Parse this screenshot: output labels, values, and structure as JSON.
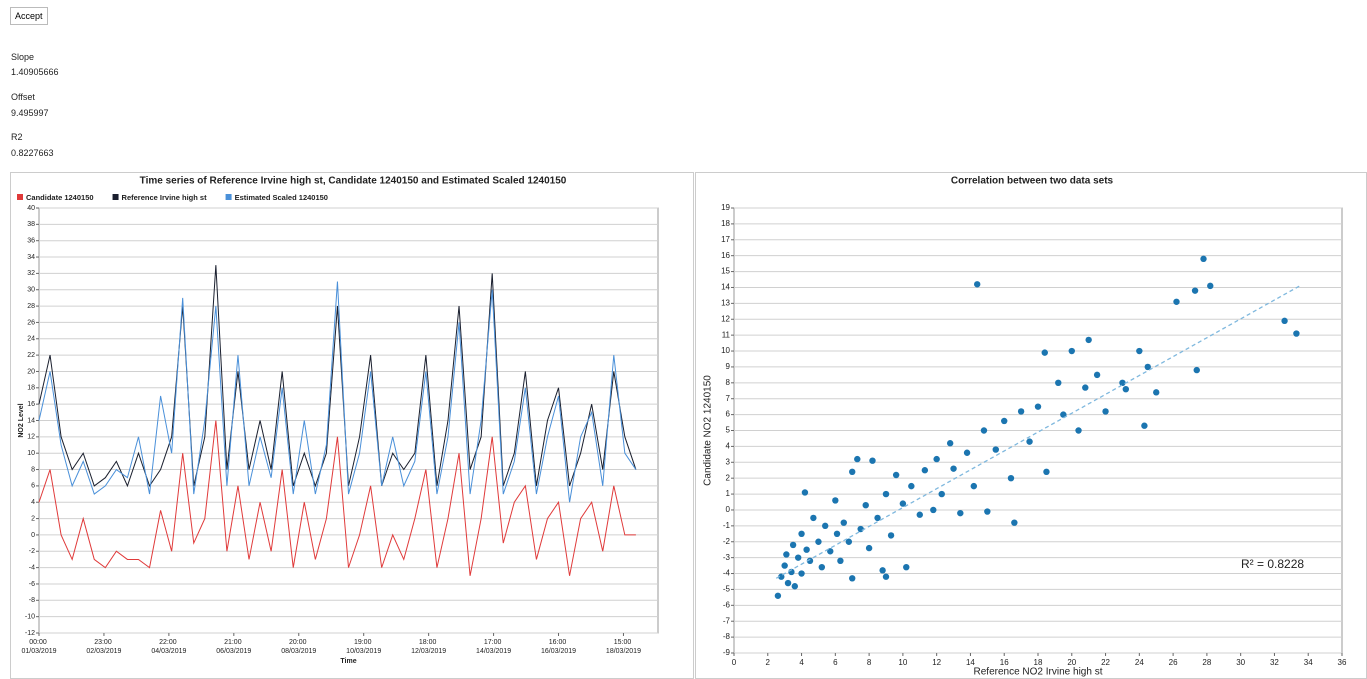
{
  "controls": {
    "button": "Accept",
    "fields": [
      {
        "label": "Slope",
        "value": "1.40905666"
      },
      {
        "label": "Offset",
        "value": "9.495997"
      },
      {
        "label": "R2",
        "value": "0.8227663"
      }
    ]
  },
  "chart_data": [
    {
      "type": "line",
      "title": "Time series of Reference Irvine high st, Candidate 1240150 and Estimated Scaled 1240150",
      "x_label": "Time",
      "y_label": "NO2 Level",
      "legend": "top-left",
      "grid": true,
      "x": [
        "2019-03-01T00:00",
        "2019-03-01T08:00",
        "2019-03-01T16:00",
        "2019-03-02T00:00",
        "2019-03-02T08:00",
        "2019-03-02T16:00",
        "2019-03-03T00:00",
        "2019-03-03T08:00",
        "2019-03-03T16:00",
        "2019-03-04T00:00",
        "2019-03-04T08:00",
        "2019-03-04T16:00",
        "2019-03-05T00:00",
        "2019-03-05T08:00",
        "2019-03-05T16:00",
        "2019-03-06T00:00",
        "2019-03-06T08:00",
        "2019-03-06T16:00",
        "2019-03-07T00:00",
        "2019-03-07T08:00",
        "2019-03-07T16:00",
        "2019-03-08T00:00",
        "2019-03-08T08:00",
        "2019-03-08T16:00",
        "2019-03-09T00:00",
        "2019-03-09T08:00",
        "2019-03-09T16:00",
        "2019-03-10T00:00",
        "2019-03-10T08:00",
        "2019-03-10T16:00",
        "2019-03-11T00:00",
        "2019-03-11T08:00",
        "2019-03-11T16:00",
        "2019-03-12T00:00",
        "2019-03-12T08:00",
        "2019-03-12T16:00",
        "2019-03-13T00:00",
        "2019-03-13T08:00",
        "2019-03-13T16:00",
        "2019-03-14T00:00",
        "2019-03-14T08:00",
        "2019-03-14T16:00",
        "2019-03-15T00:00",
        "2019-03-15T08:00",
        "2019-03-15T16:00",
        "2019-03-16T00:00",
        "2019-03-16T08:00",
        "2019-03-16T16:00",
        "2019-03-17T00:00",
        "2019-03-17T08:00",
        "2019-03-17T16:00",
        "2019-03-18T00:00",
        "2019-03-18T08:00",
        "2019-03-18T16:00",
        "2019-03-19T00:00"
      ],
      "series": [
        {
          "name": "Candidate 1240150",
          "color": "#e03a3a",
          "values": [
            4,
            8,
            0,
            -3,
            2,
            -3,
            -4,
            -2,
            -3,
            -3,
            -4,
            3,
            -2,
            10,
            -1,
            2,
            14,
            -2,
            6,
            -3,
            4,
            -2,
            8,
            -4,
            4,
            -3,
            2,
            12,
            -4,
            0,
            6,
            -4,
            0,
            -3,
            2,
            8,
            -4,
            2,
            10,
            -5,
            2,
            12,
            -1,
            4,
            6,
            -3,
            2,
            4,
            -5,
            2,
            4,
            -2,
            6,
            0,
            0
          ]
        },
        {
          "name": "Reference Irvine high st",
          "color": "#1a1f2e",
          "values": [
            16,
            22,
            12,
            8,
            10,
            6,
            7,
            9,
            6,
            10,
            6,
            8,
            12,
            28,
            6,
            12,
            33,
            8,
            20,
            8,
            14,
            8,
            20,
            6,
            10,
            6,
            10,
            28,
            6,
            12,
            22,
            6,
            10,
            8,
            10,
            22,
            6,
            14,
            28,
            8,
            12,
            32,
            6,
            10,
            20,
            6,
            14,
            18,
            6,
            10,
            16,
            8,
            20,
            12,
            8
          ]
        },
        {
          "name": "Estimated Scaled 1240150",
          "color": "#4a90d9",
          "values": [
            14,
            20,
            11,
            6,
            9,
            5,
            6,
            8,
            7,
            12,
            5,
            17,
            10,
            29,
            5,
            14,
            28,
            6,
            22,
            6,
            12,
            7,
            18,
            5,
            14,
            5,
            11,
            31,
            5,
            10,
            20,
            6,
            12,
            6,
            9,
            20,
            5,
            12,
            26,
            5,
            14,
            30,
            5,
            9,
            18,
            5,
            12,
            17,
            4,
            12,
            15,
            6,
            22,
            10,
            8
          ]
        }
      ],
      "ylim": [
        -12,
        40
      ],
      "yticks": [
        -12,
        -10,
        -8,
        -6,
        -4,
        -2,
        0,
        2,
        4,
        6,
        8,
        10,
        12,
        14,
        16,
        18,
        20,
        22,
        24,
        26,
        28,
        30,
        32,
        34,
        36,
        38,
        40
      ],
      "xlim": [
        "2019-03-01T00:00",
        "2019-03-19T16:00"
      ],
      "xticks": [
        {
          "value": "2019-03-01T00:00",
          "label": "00:00 01/03/2019"
        },
        {
          "value": "2019-03-02T23:00",
          "label": "23:00 02/03/2019"
        },
        {
          "value": "2019-03-04T22:00",
          "label": "22:00 04/03/2019"
        },
        {
          "value": "2019-03-06T21:00",
          "label": "21:00 06/03/2019"
        },
        {
          "value": "2019-03-08T20:00",
          "label": "20:00 08/03/2019"
        },
        {
          "value": "2019-03-10T19:00",
          "label": "19:00 10/03/2019"
        },
        {
          "value": "2019-03-12T18:00",
          "label": "18:00 12/03/2019"
        },
        {
          "value": "2019-03-14T17:00",
          "label": "17:00 14/03/2019"
        },
        {
          "value": "2019-03-16T16:00",
          "label": "16:00 16/03/2019"
        },
        {
          "value": "2019-03-18T15:00",
          "label": "15:00 18/03/2019"
        }
      ]
    },
    {
      "type": "scatter",
      "title": "Correlation between two data sets",
      "x_label": "Reference NO2 Irvine high st",
      "y_label": "Candidate NO2 1240150",
      "annotation": "R² = 0.8228",
      "grid": true,
      "color": "#1b75b0",
      "x": [
        2.6,
        2.8,
        3,
        3.1,
        3.2,
        3.4,
        3.5,
        3.6,
        3.8,
        4,
        4,
        4.2,
        4.3,
        4.5,
        4.7,
        5,
        5.2,
        5.4,
        5.7,
        6,
        6.1,
        6.3,
        6.5,
        6.8,
        7,
        7,
        7.3,
        7.5,
        7.8,
        8,
        8.2,
        8.5,
        8.8,
        9,
        9,
        9.3,
        9.6,
        10,
        10.2,
        10.5,
        11,
        11.3,
        11.8,
        12,
        12.3,
        12.8,
        13,
        13.4,
        13.8,
        14.2,
        14.4,
        14.8,
        15,
        15.5,
        16,
        16.4,
        16.6,
        17,
        17.5,
        18,
        18.4,
        18.5,
        19.2,
        19.5,
        20,
        20.4,
        20.8,
        21,
        21.5,
        22,
        23,
        23.2,
        24,
        24.3,
        24.5,
        25,
        26.2,
        27.3,
        27.4,
        27.8,
        28.2,
        32.6,
        33.3
      ],
      "values": [
        -5.4,
        -4.2,
        -3.5,
        -2.8,
        -4.6,
        -3.9,
        -2.2,
        -4.8,
        -3,
        -1.5,
        -4,
        1.1,
        -2.5,
        -3.2,
        -0.5,
        -2,
        -3.6,
        -1,
        -2.6,
        0.6,
        -1.5,
        -3.2,
        -0.8,
        -2,
        2.4,
        -4.3,
        3.2,
        -1.2,
        0.3,
        -2.4,
        3.1,
        -0.5,
        -3.8,
        -4.2,
        1,
        -1.6,
        2.2,
        0.4,
        -3.6,
        1.5,
        -0.3,
        2.5,
        0,
        3.2,
        1,
        4.2,
        2.6,
        -0.2,
        3.6,
        1.5,
        14.2,
        5,
        -0.1,
        3.8,
        5.6,
        2,
        -0.8,
        6.2,
        4.3,
        6.5,
        9.9,
        2.4,
        8,
        6,
        10,
        5,
        7.7,
        10.7,
        8.5,
        6.2,
        8,
        7.6,
        10,
        5.3,
        9,
        7.4,
        13.1,
        13.8,
        8.8,
        15.8,
        14.1,
        11.9,
        11.1
      ],
      "trendline": {
        "x": [
          2.5,
          33.5
        ],
        "values": [
          -4.3,
          14.1
        ],
        "color": "#7fb8de"
      },
      "xlim": [
        0,
        36
      ],
      "xticks": [
        0,
        2,
        4,
        6,
        8,
        10,
        12,
        14,
        16,
        18,
        20,
        22,
        24,
        26,
        28,
        30,
        32,
        34,
        36
      ],
      "ylim": [
        -9,
        19
      ],
      "yticks": [
        -9,
        -8,
        -7,
        -6,
        -5,
        -4,
        -3,
        -2,
        -1,
        0,
        1,
        2,
        3,
        4,
        5,
        6,
        7,
        8,
        9,
        10,
        11,
        12,
        13,
        14,
        15,
        16,
        17,
        18,
        19
      ]
    }
  ]
}
